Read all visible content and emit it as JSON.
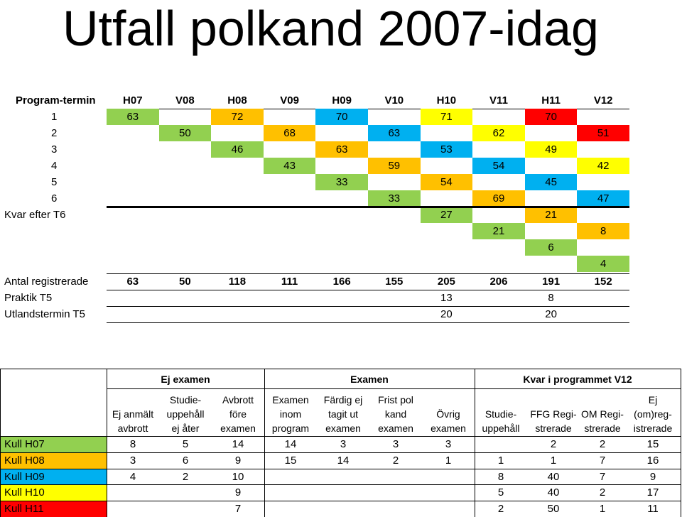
{
  "title": "Utfall polkand 2007-idag",
  "colors": {
    "H07": "#92d050",
    "H08": "#ffc000",
    "H09": "#00b0f0",
    "H10": "#ffff00",
    "H11": "#ff0000"
  },
  "top_table": {
    "header_label": "Program-termin",
    "columns": [
      "H07",
      "V08",
      "H08",
      "V09",
      "H09",
      "V10",
      "H10",
      "V11",
      "H11",
      "V12"
    ],
    "rows": [
      {
        "label": "1",
        "cells": [
          {
            "col": 0,
            "value": "63",
            "kull": "H07"
          },
          {
            "col": 2,
            "value": "72",
            "kull": "H08"
          },
          {
            "col": 4,
            "value": "70",
            "kull": "H09"
          },
          {
            "col": 6,
            "value": "71",
            "kull": "H10"
          },
          {
            "col": 8,
            "value": "70",
            "kull": "H11"
          }
        ]
      },
      {
        "label": "2",
        "cells": [
          {
            "col": 1,
            "value": "50",
            "kull": "H07"
          },
          {
            "col": 3,
            "value": "68",
            "kull": "H08"
          },
          {
            "col": 5,
            "value": "63",
            "kull": "H09"
          },
          {
            "col": 7,
            "value": "62",
            "kull": "H10"
          },
          {
            "col": 9,
            "value": "51",
            "kull": "H11"
          }
        ]
      },
      {
        "label": "3",
        "cells": [
          {
            "col": 2,
            "value": "46",
            "kull": "H07"
          },
          {
            "col": 4,
            "value": "63",
            "kull": "H08"
          },
          {
            "col": 6,
            "value": "53",
            "kull": "H09"
          },
          {
            "col": 8,
            "value": "49",
            "kull": "H10"
          }
        ]
      },
      {
        "label": "4",
        "cells": [
          {
            "col": 3,
            "value": "43",
            "kull": "H07"
          },
          {
            "col": 5,
            "value": "59",
            "kull": "H08"
          },
          {
            "col": 7,
            "value": "54",
            "kull": "H09"
          },
          {
            "col": 9,
            "value": "42",
            "kull": "H10"
          }
        ]
      },
      {
        "label": "5",
        "cells": [
          {
            "col": 4,
            "value": "33",
            "kull": "H07"
          },
          {
            "col": 6,
            "value": "54",
            "kull": "H08"
          },
          {
            "col": 8,
            "value": "45",
            "kull": "H09"
          }
        ]
      },
      {
        "label": "6",
        "cells": [
          {
            "col": 5,
            "value": "33",
            "kull": "H07"
          },
          {
            "col": 7,
            "value": "69",
            "kull": "H08"
          },
          {
            "col": 9,
            "value": "47",
            "kull": "H09"
          }
        ]
      },
      {
        "label": "Kvar efter T6",
        "cells": [
          {
            "col": 6,
            "value": "27",
            "kull": "H07"
          },
          {
            "col": 8,
            "value": "21",
            "kull": "H08"
          }
        ]
      },
      {
        "label": "",
        "cells": [
          {
            "col": 7,
            "value": "21",
            "kull": "H07"
          },
          {
            "col": 9,
            "value": "8",
            "kull": "H08"
          }
        ]
      },
      {
        "label": "",
        "cells": [
          {
            "col": 8,
            "value": "6",
            "kull": "H07"
          }
        ]
      },
      {
        "label": "",
        "cells": [
          {
            "col": 9,
            "value": "4",
            "kull": "H07"
          }
        ]
      }
    ],
    "antal": {
      "label": "Antal registrerade",
      "values": [
        "63",
        "50",
        "118",
        "111",
        "166",
        "155",
        "205",
        "206",
        "191",
        "152"
      ]
    },
    "praktik": {
      "label": "Praktik T5",
      "cells": [
        {
          "col": 6,
          "value": "13"
        },
        {
          "col": 8,
          "value": "8"
        }
      ]
    },
    "utland": {
      "label": "Utlandstermin T5",
      "cells": [
        {
          "col": 6,
          "value": "20"
        },
        {
          "col": 8,
          "value": "20"
        }
      ]
    }
  },
  "bottom_table": {
    "groups": [
      {
        "label": "Ej examen"
      },
      {
        "label": "Examen"
      },
      {
        "label": "Kvar i programmet V12"
      }
    ],
    "columns": [
      "Ej anmält avbrott",
      "Studie-uppehåll ej åter",
      "Avbrott före examen",
      "Examen inom program",
      "Färdig ej tagit ut examen",
      "Frist pol kand examen",
      "Övrig examen",
      "Studie-uppehåll",
      "FFG Regi-strerade",
      "OM Regi-strerade",
      "Ej (om)reg-istrerade"
    ],
    "columns_lines": [
      [
        "Ej anmält",
        "avbrott"
      ],
      [
        "Studie-",
        "uppehåll",
        "ej åter"
      ],
      [
        "Avbrott",
        "före",
        "examen"
      ],
      [
        "Examen",
        "inom",
        "program"
      ],
      [
        "Färdig ej",
        "tagit ut",
        "examen"
      ],
      [
        "Frist pol",
        "kand",
        "examen"
      ],
      [
        "Övrig",
        "examen"
      ],
      [
        "Studie-",
        "uppehåll"
      ],
      [
        "FFG Regi-",
        "strerade"
      ],
      [
        "OM Regi-",
        "strerade"
      ],
      [
        "Ej",
        "(om)reg-",
        "istrerade"
      ]
    ],
    "rows": [
      {
        "label": "Kull H07",
        "kull": "H07",
        "values": [
          "8",
          "5",
          "14",
          "14",
          "3",
          "3",
          "3",
          "",
          "2",
          "2",
          "15"
        ]
      },
      {
        "label": "Kull H08",
        "kull": "H08",
        "values": [
          "3",
          "6",
          "9",
          "15",
          "14",
          "2",
          "1",
          "1",
          "1",
          "7",
          "16"
        ]
      },
      {
        "label": "Kull H09",
        "kull": "H09",
        "values": [
          "4",
          "2",
          "10",
          "",
          "",
          "",
          "",
          "8",
          "40",
          "7",
          "9"
        ]
      },
      {
        "label": "Kull H10",
        "kull": "H10",
        "values": [
          "",
          "",
          "9",
          "",
          "",
          "",
          "",
          "5",
          "40",
          "2",
          "17"
        ]
      },
      {
        "label": "Kull H11",
        "kull": "H11",
        "values": [
          "",
          "",
          "7",
          "",
          "",
          "",
          "",
          "2",
          "50",
          "1",
          "11"
        ]
      }
    ]
  }
}
